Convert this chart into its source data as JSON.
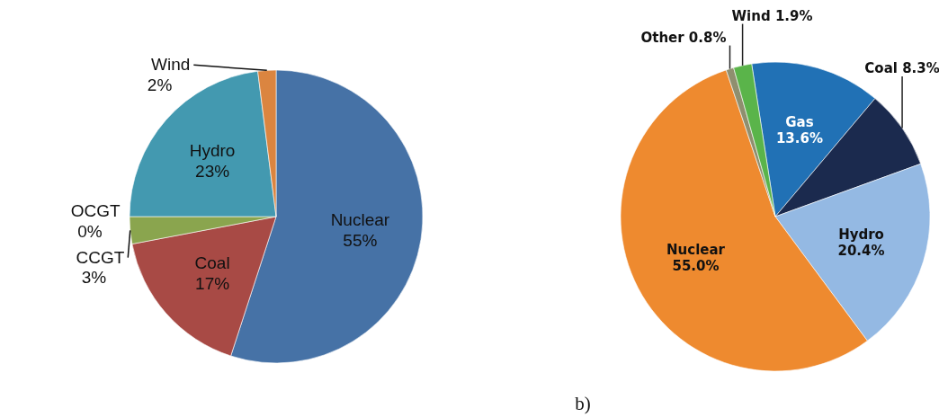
{
  "chart_data": [
    {
      "type": "pie",
      "categories": [
        "Nuclear",
        "Coal",
        "CCGT",
        "OCGT",
        "Hydro",
        "Wind"
      ],
      "values": [
        55,
        17,
        3,
        0,
        23,
        2
      ],
      "colors": [
        "#4672a6",
        "#a84a45",
        "#8aa54e",
        "#7e64a0",
        "#4399b0",
        "#db8540"
      ],
      "value_labels": [
        "55%",
        "17%",
        "3%",
        "0%",
        "23%",
        "2%"
      ]
    },
    {
      "type": "pie",
      "categories": [
        "Gas",
        "Coal",
        "Hydro",
        "Nuclear",
        "Other",
        "Wind"
      ],
      "values": [
        13.6,
        8.3,
        20.4,
        55.0,
        0.8,
        1.9
      ],
      "colors": [
        "#2171b5",
        "#1b2a4e",
        "#94b9e3",
        "#ee8a2f",
        "#8f8f6f",
        "#5ab44a"
      ],
      "value_labels": [
        "13.6%",
        "8.3%",
        "20.4%",
        "55.0%",
        "0.8%",
        "1.9%"
      ],
      "annotations": [
        "b)"
      ]
    }
  ]
}
